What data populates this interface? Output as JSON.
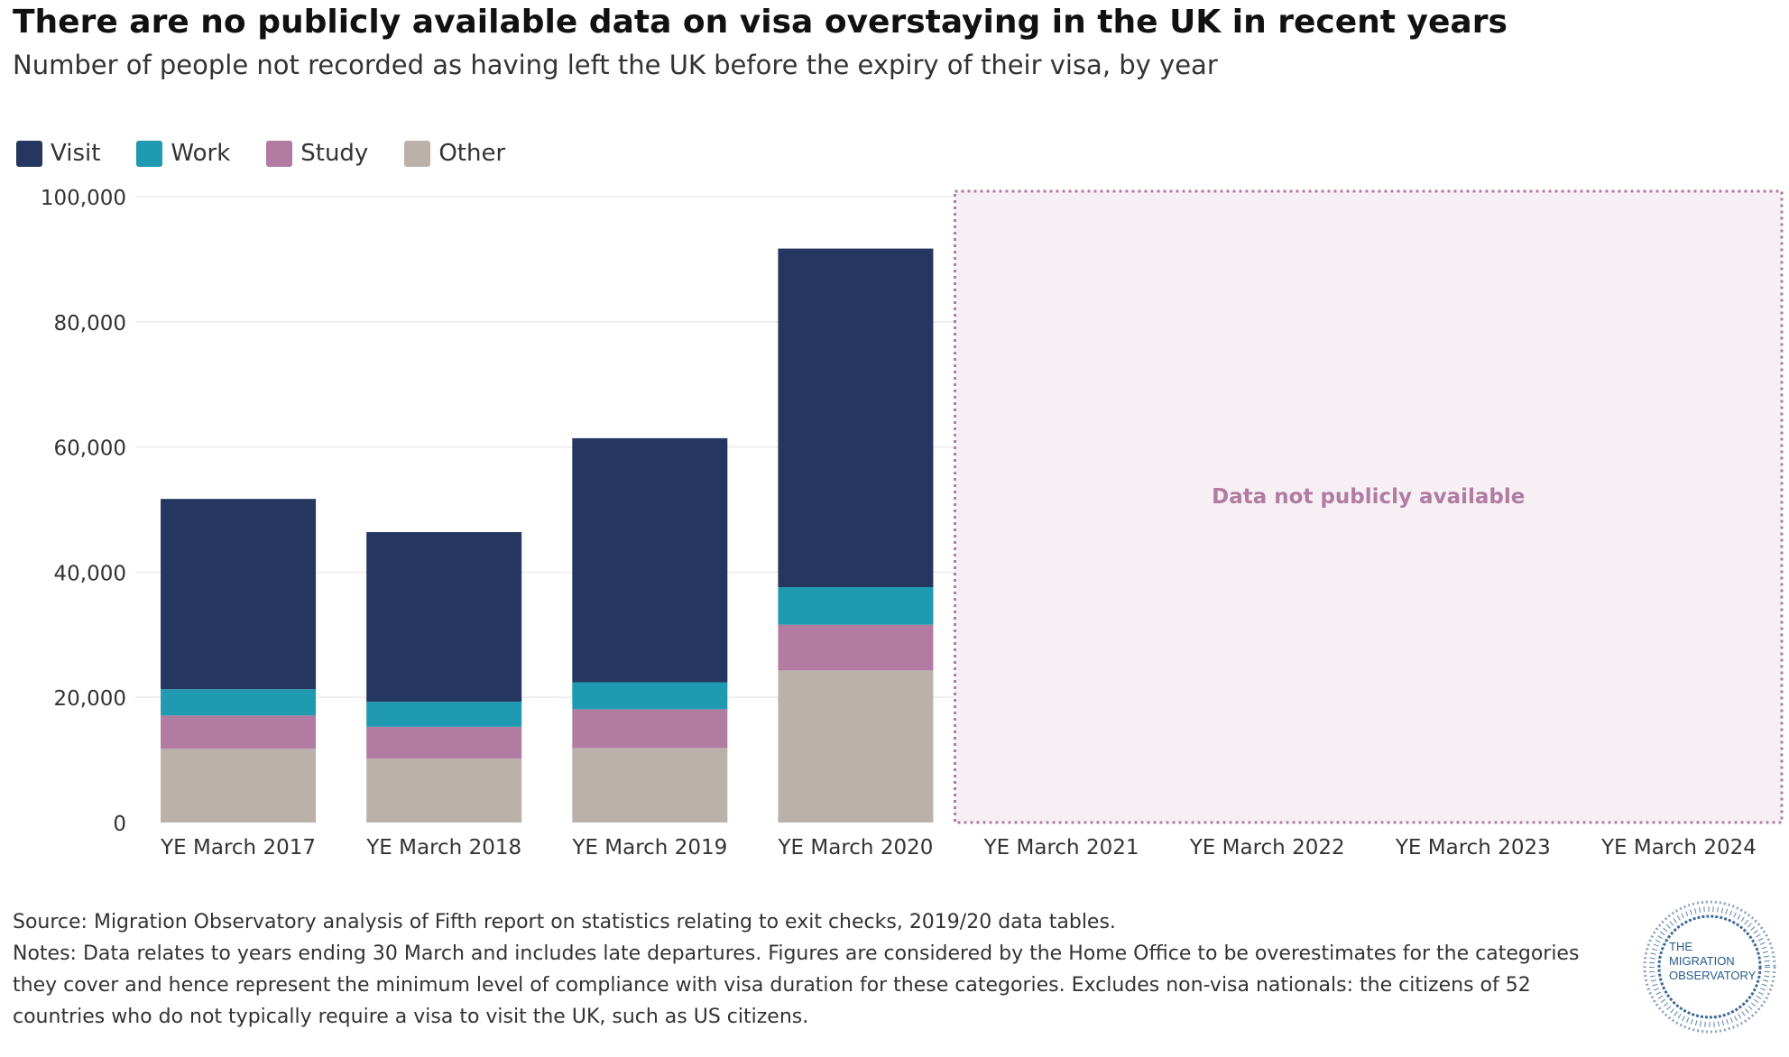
{
  "title": "There are no publicly available data on visa overstaying in the UK in recent years",
  "subtitle": "Number of people not recorded as having left the UK before the expiry of their visa, by year",
  "legend": [
    {
      "label": "Visit",
      "color": "#253660"
    },
    {
      "label": "Work",
      "color": "#1f9ab1"
    },
    {
      "label": "Study",
      "color": "#b27ba1"
    },
    {
      "label": "Other",
      "color": "#bbb1ab"
    }
  ],
  "no_data_label": "Data not publicly available",
  "source_text": "Source: Migration Observatory analysis of Fifth report on statistics relating to exit checks, 2019/20 data tables.",
  "notes_text": "Notes: Data relates to years ending 30 March and includes late departures. Figures are considered by the Home Office to be overestimates for the categories they cover and hence represent the minimum level of compliance with visa duration for these categories. Excludes non-visa nationals: the citizens of 52 countries who do not typically require a visa to visit the UK, such as US citizens.",
  "logo": {
    "line1": "THE",
    "line2": "MIGRATION",
    "line3": "OBSERVATORY"
  },
  "chart_data": {
    "type": "bar",
    "stacked": true,
    "categories": [
      "YE March 2017",
      "YE March 2018",
      "YE March 2019",
      "YE March 2020",
      "YE March 2021",
      "YE March 2022",
      "YE March 2023",
      "YE March 2024"
    ],
    "series": [
      {
        "name": "Other",
        "color": "#bbb1ab",
        "values": [
          11800,
          10200,
          11900,
          24300,
          null,
          null,
          null,
          null
        ]
      },
      {
        "name": "Study",
        "color": "#b27ba1",
        "values": [
          5300,
          5100,
          6200,
          7300,
          null,
          null,
          null,
          null
        ]
      },
      {
        "name": "Work",
        "color": "#1f9ab1",
        "values": [
          4200,
          4000,
          4300,
          6000,
          null,
          null,
          null,
          null
        ]
      },
      {
        "name": "Visit",
        "color": "#253660",
        "values": [
          30400,
          27100,
          39000,
          54100,
          null,
          null,
          null,
          null
        ]
      }
    ],
    "ylim": [
      0,
      100000
    ],
    "yticks": [
      0,
      20000,
      40000,
      60000,
      80000,
      100000
    ],
    "ytick_labels": [
      "0",
      "20,000",
      "40,000",
      "60,000",
      "80,000",
      "100,000"
    ],
    "grid": true,
    "legend_position": "top-left",
    "no_data_categories": [
      "YE March 2021",
      "YE March 2022",
      "YE March 2023",
      "YE March 2024"
    ]
  }
}
